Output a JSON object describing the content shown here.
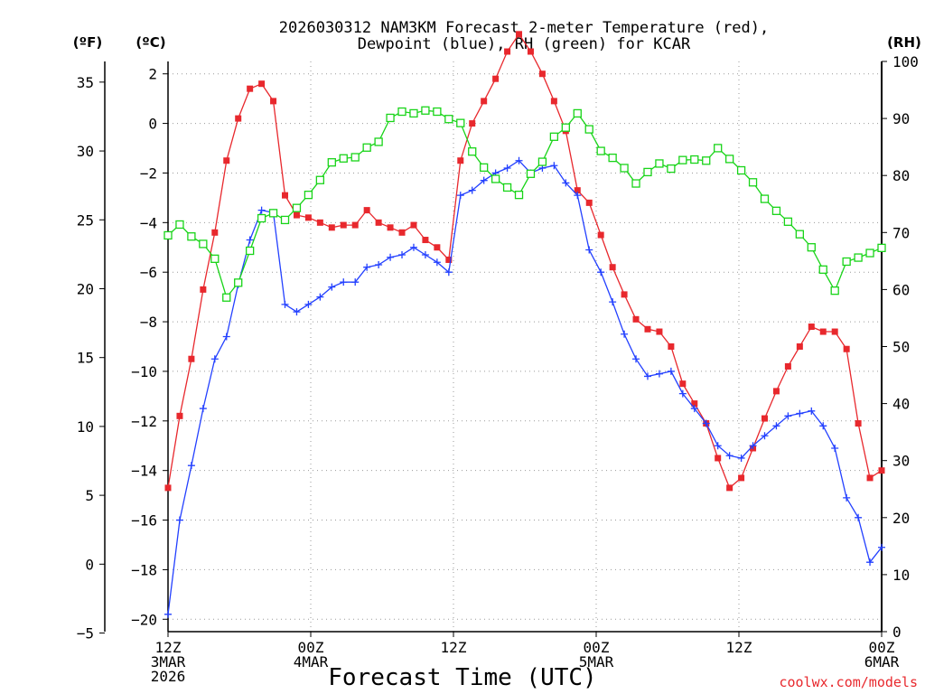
{
  "chart_data": {
    "type": "line",
    "title": [
      "2026030312 NAM3KM Forecast 2-meter Temperature (red),",
      "Dewpoint (blue), RH (green) for KCAR"
    ],
    "unit_labels": {
      "fahrenheit": "(ºF)",
      "celsius": "(ºC)",
      "rh": "(RH)"
    },
    "xlabel": "Forecast Time (UTC)",
    "credit": "coolwx.com/models",
    "x_range_hours": [
      0,
      60
    ],
    "x_ticks": [
      {
        "hour": 0,
        "lines": [
          "12Z",
          "3MAR",
          "2026"
        ]
      },
      {
        "hour": 12,
        "lines": [
          "00Z",
          "4MAR"
        ]
      },
      {
        "hour": 24,
        "lines": [
          "12Z"
        ]
      },
      {
        "hour": 36,
        "lines": [
          "00Z",
          "5MAR"
        ]
      },
      {
        "hour": 48,
        "lines": [
          "12Z"
        ]
      },
      {
        "hour": 60,
        "lines": [
          "00Z",
          "6MAR"
        ]
      }
    ],
    "celsius_axis": {
      "range": [
        -20.5,
        2.5
      ],
      "ticks": [
        2,
        0,
        -2,
        -4,
        -6,
        -8,
        -10,
        -12,
        -14,
        -16,
        -18,
        -20
      ],
      "tick_labels": [
        "2",
        "0",
        "−2",
        "−4",
        "−6",
        "−8",
        "−10",
        "−12",
        "−14",
        "−16",
        "−18",
        "−20"
      ]
    },
    "fahrenheit_axis": {
      "ticks": [
        35,
        30,
        25,
        20,
        15,
        10,
        5,
        0,
        -5
      ],
      "tick_labels": [
        "35",
        "30",
        "25",
        "20",
        "15",
        "10",
        "5",
        "0",
        "−5"
      ]
    },
    "rh_axis": {
      "range": [
        0,
        100
      ],
      "ticks": [
        100,
        90,
        80,
        70,
        60,
        50,
        40,
        30,
        20,
        10,
        0
      ],
      "tick_labels": [
        "100",
        "90",
        "80",
        "70",
        "60",
        "50",
        "40",
        "30",
        "20",
        "10",
        "0"
      ]
    },
    "series": [
      {
        "name": "2-meter Temperature",
        "unit": "C",
        "color": "#e8282d",
        "marker": "square-filled",
        "values": [
          -14.7,
          -11.8,
          -9.5,
          -6.7,
          -4.4,
          -1.5,
          0.2,
          1.4,
          1.6,
          0.9,
          -2.9,
          -3.7,
          -3.8,
          -4.0,
          -4.2,
          -4.1,
          -4.1,
          -3.5,
          -4.0,
          -4.2,
          -4.4,
          -4.1,
          -4.7,
          -5.0,
          -5.5,
          -1.5,
          0.0,
          0.9,
          1.8,
          2.9,
          3.6,
          2.9,
          2.0,
          0.9,
          -0.3,
          -2.7,
          -3.2,
          -4.5,
          -5.8,
          -6.9,
          -7.9,
          -8.3,
          -8.4,
          -9.0,
          -10.5,
          -11.3,
          -12.1,
          -13.5,
          -14.7,
          -14.3,
          -13.1,
          -11.9,
          -10.8,
          -9.8,
          -9.0,
          -8.2,
          -8.4,
          -8.4,
          -9.1,
          -12.1,
          -14.3,
          -14.0
        ]
      },
      {
        "name": "Dewpoint",
        "unit": "C",
        "color": "#2340ff",
        "marker": "plus",
        "values": [
          -19.8,
          -16.0,
          -13.8,
          -11.5,
          -9.5,
          -8.6,
          -6.5,
          -4.7,
          -3.5,
          -3.6,
          -7.3,
          -7.6,
          -7.3,
          -7.0,
          -6.6,
          -6.4,
          -6.4,
          -5.8,
          -5.7,
          -5.4,
          -5.3,
          -5.0,
          -5.3,
          -5.6,
          -6.0,
          -2.9,
          -2.7,
          -2.3,
          -2.0,
          -1.8,
          -1.5,
          -2.0,
          -1.8,
          -1.7,
          -2.4,
          -2.9,
          -5.1,
          -6.0,
          -7.2,
          -8.5,
          -9.5,
          -10.2,
          -10.1,
          -10.0,
          -10.9,
          -11.5,
          -12.1,
          -13.0,
          -13.4,
          -13.5,
          -13.0,
          -12.6,
          -12.2,
          -11.8,
          -11.7,
          -11.6,
          -12.2,
          -13.1,
          -15.1,
          -15.9,
          -17.7,
          -17.1
        ]
      },
      {
        "name": "RH",
        "unit": "%",
        "color": "#18d418",
        "marker": "square-open",
        "values": [
          69.5,
          71.4,
          69.3,
          68.0,
          65.4,
          58.6,
          61.2,
          66.8,
          72.5,
          73.4,
          72.2,
          74.3,
          76.6,
          79.2,
          82.3,
          83.0,
          83.2,
          84.9,
          85.9,
          90.1,
          91.2,
          90.9,
          91.4,
          91.2,
          89.9,
          89.2,
          84.2,
          81.4,
          79.4,
          77.9,
          76.6,
          80.3,
          82.4,
          86.8,
          88.4,
          90.9,
          88.1,
          84.3,
          83.1,
          81.3,
          78.6,
          80.6,
          82.1,
          81.2,
          82.7,
          82.8,
          82.6,
          84.8,
          82.9,
          80.9,
          78.8,
          75.9,
          73.8,
          71.9,
          69.7,
          67.4,
          63.5,
          59.8,
          64.9,
          65.6,
          66.4,
          67.3
        ]
      }
    ]
  }
}
